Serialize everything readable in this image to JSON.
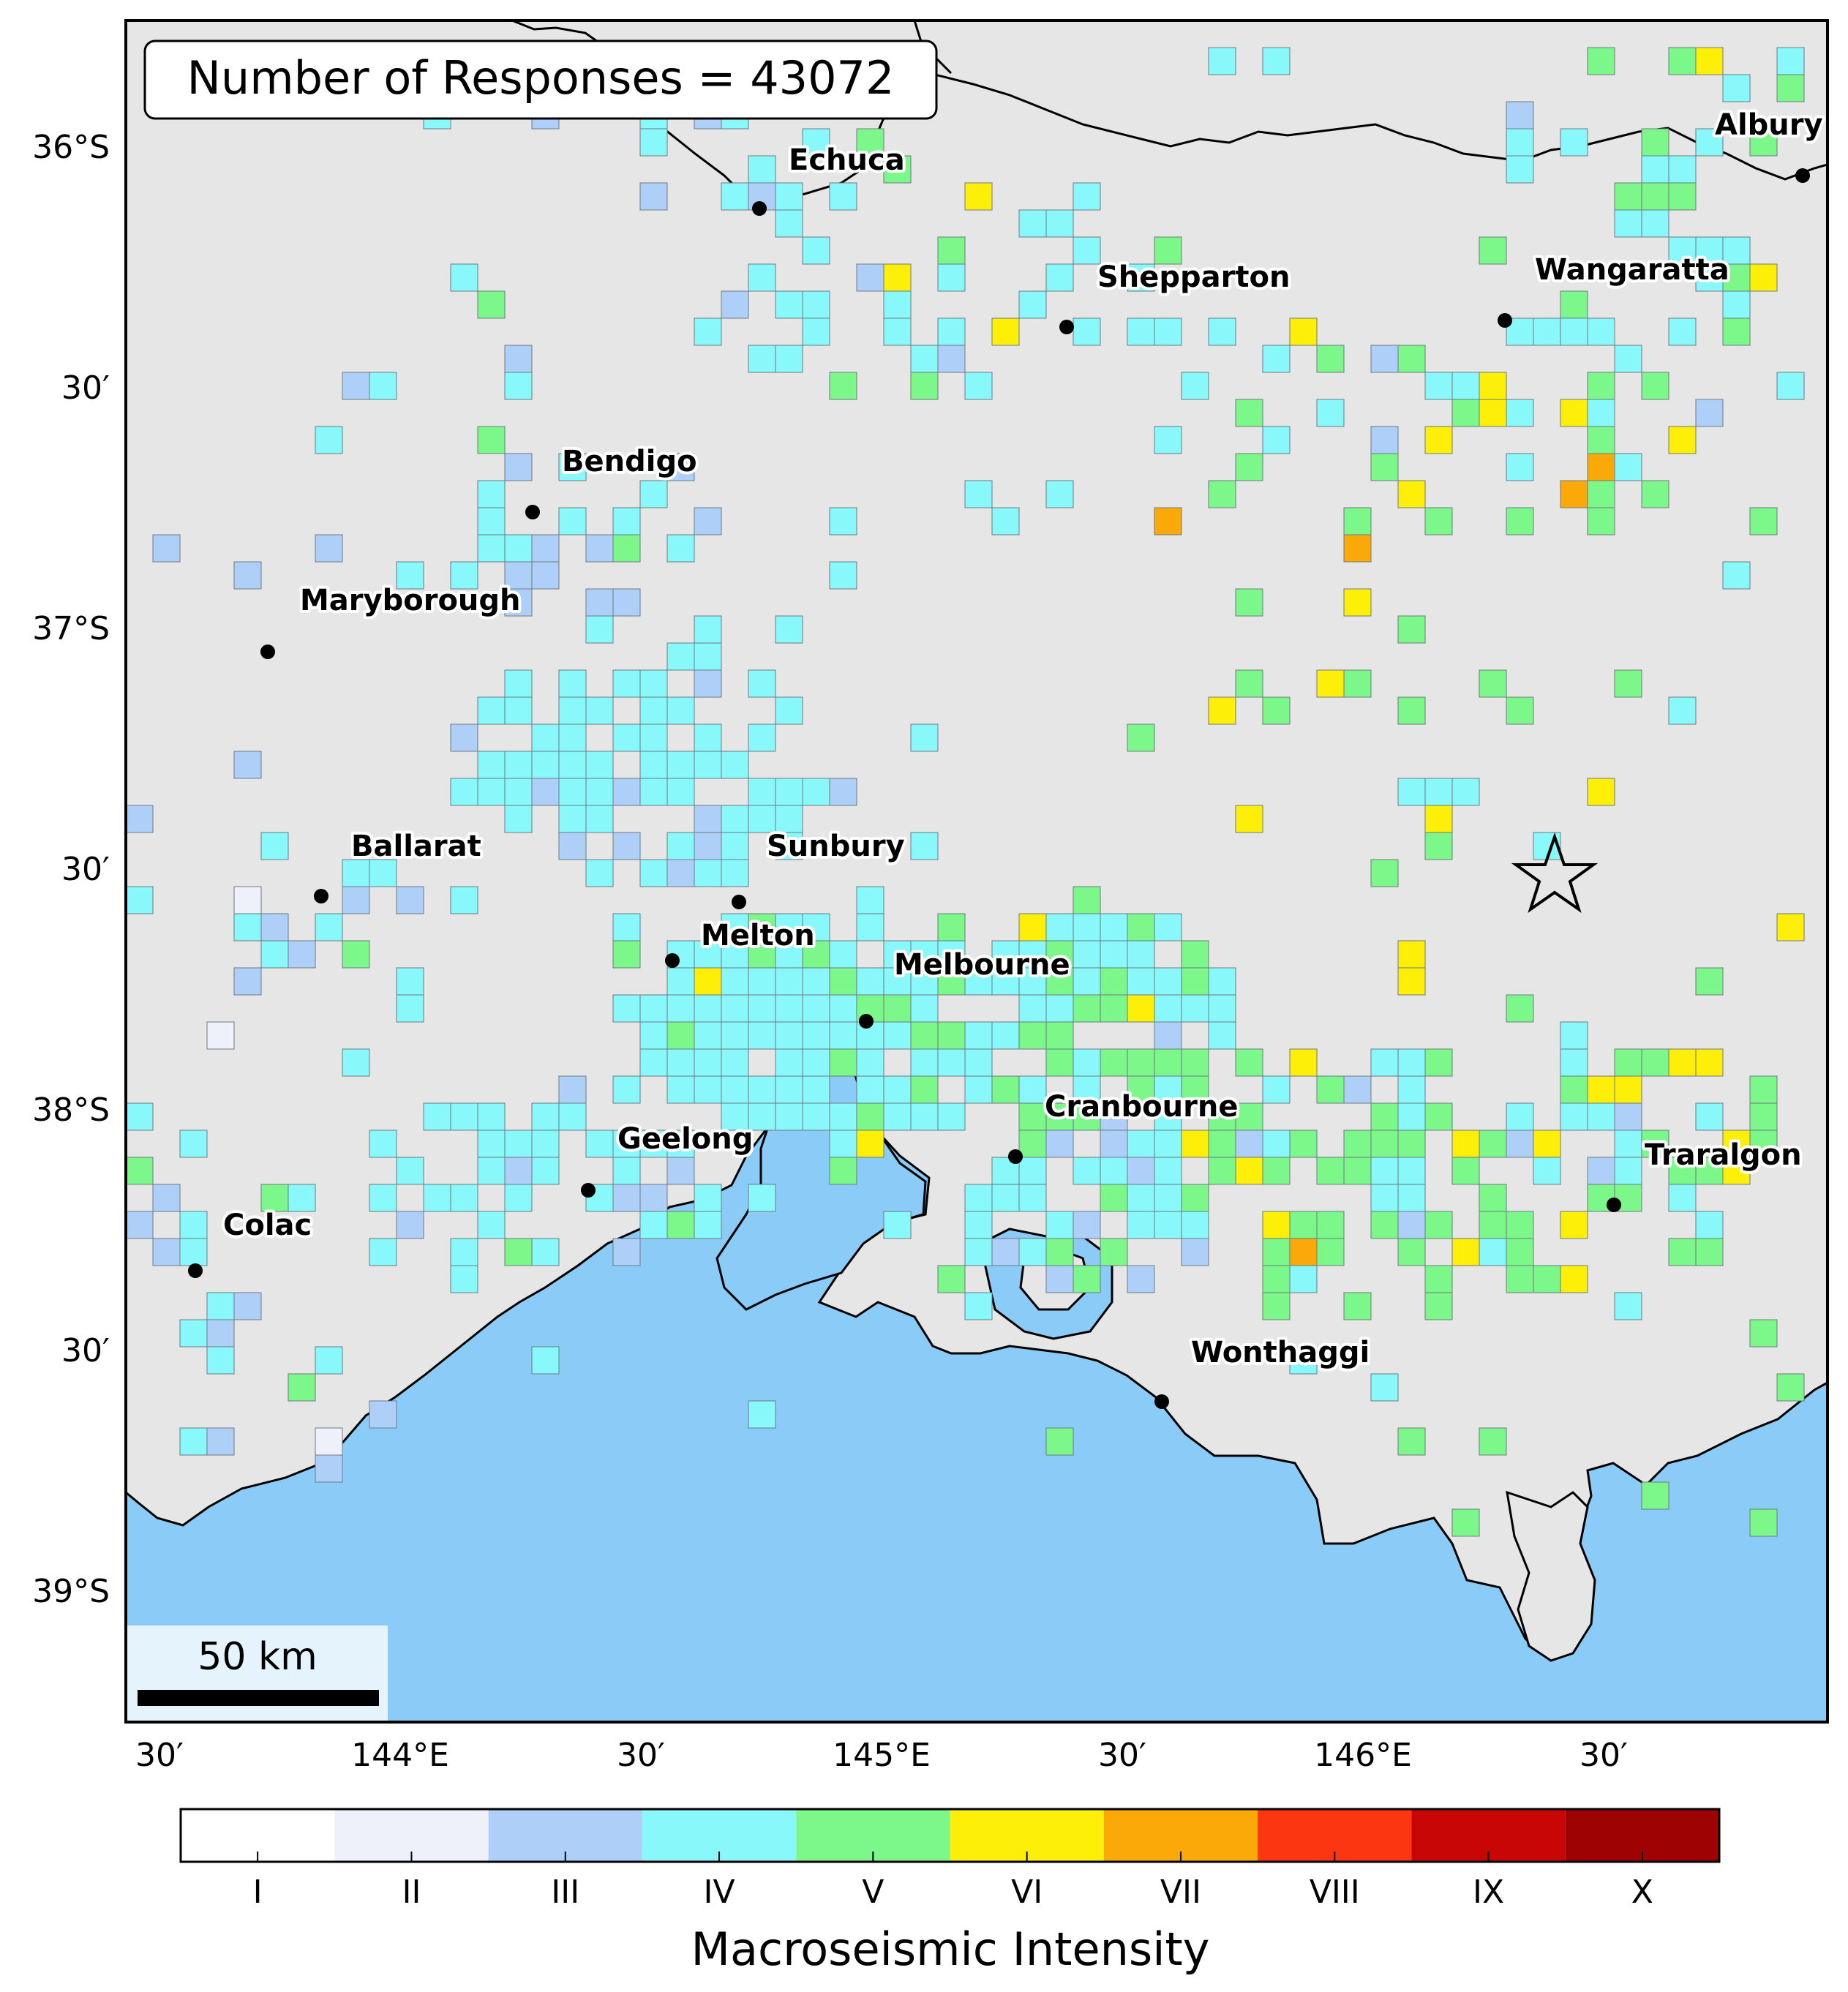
{
  "title_box": {
    "label": "Number of Responses = 43072"
  },
  "axes": {
    "lat_labels": [
      "36°S",
      "30′",
      "37°S",
      "30′",
      "38°S",
      "30′",
      "39°S"
    ],
    "lon_labels": [
      "30′",
      "144°E",
      "30′",
      "145°E",
      "30′",
      "146°E",
      "30′"
    ]
  },
  "cities": [
    {
      "name": "Echuca"
    },
    {
      "name": "Albury"
    },
    {
      "name": "Shepparton"
    },
    {
      "name": "Wangaratta"
    },
    {
      "name": "Bendigo"
    },
    {
      "name": "Maryborough"
    },
    {
      "name": "Ballarat"
    },
    {
      "name": "Sunbury"
    },
    {
      "name": "Melton"
    },
    {
      "name": "Melbourne"
    },
    {
      "name": "Cranbourne"
    },
    {
      "name": "Geelong"
    },
    {
      "name": "Traralgon"
    },
    {
      "name": "Colac"
    },
    {
      "name": "Wonthaggi"
    }
  ],
  "epicenter": {
    "marker": "star"
  },
  "scale_bar": {
    "label": "50 km"
  },
  "legend": {
    "title": "Macroseismic Intensity",
    "levels": [
      "I",
      "II",
      "III",
      "IV",
      "V",
      "VI",
      "VII",
      "VIII",
      "IX",
      "X"
    ],
    "colors": [
      "#ffffff",
      "#eef0fa",
      "#aed0f8",
      "#88f8fa",
      "#7cf88a",
      "#fdef07",
      "#fba909",
      "#fb3610",
      "#c80606",
      "#9e0202"
    ]
  },
  "colors": {
    "land": "#e6e6e6",
    "water": "#8acbf7",
    "coast": "#000000"
  }
}
